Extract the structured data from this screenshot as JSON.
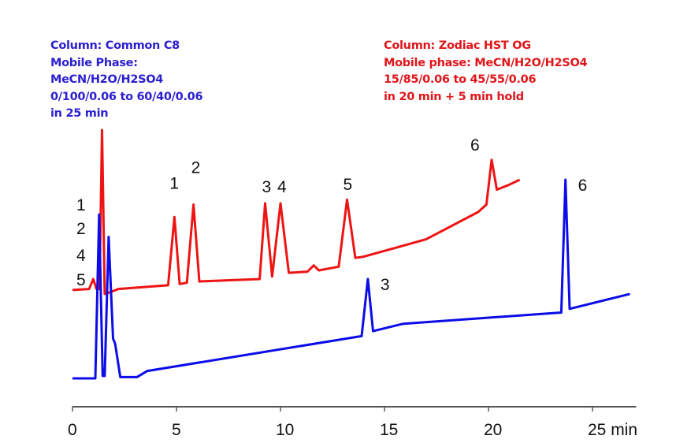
{
  "colors": {
    "blue_text": "#2b1fd0",
    "red_text": "#e0161b",
    "blue_trace": "#0c0ce8",
    "red_trace": "#ee1414"
  },
  "conditions": {
    "blue": [
      "Column: Common C8",
      "Mobile Phase:",
      "MeCN/H2O/H2SO4",
      "0/100/0.06 to 60/40/0.06",
      "in 25 min"
    ],
    "red": [
      "Column: Zodiac HST  OG",
      "Mobile phase: MeCN/H2O/H2SO4",
      "15/85/0.06 to 45/55/0.06",
      "in 20 min + 5 min hold"
    ]
  },
  "chart_data": {
    "type": "line",
    "title": "",
    "xlabel": "min",
    "ylabel": "",
    "xlim": [
      0,
      27.1
    ],
    "ylim": [
      0,
      100
    ],
    "x_ticks": [
      0,
      5,
      10,
      15,
      20,
      25
    ],
    "x_tick_labels": [
      "0",
      "5",
      "10",
      "15",
      "20",
      "25 min"
    ],
    "grid": false,
    "y_axis_shown": false,
    "series": [
      {
        "color": "#ee1414",
        "points": [
          [
            0,
            35.6
          ],
          [
            0.8,
            36
          ],
          [
            1.0,
            40
          ],
          [
            1.15,
            36
          ],
          [
            1.3,
            36
          ],
          [
            1.42,
            100
          ],
          [
            1.55,
            34
          ],
          [
            1.9,
            35
          ],
          [
            2.2,
            36
          ],
          [
            4.6,
            37.5
          ],
          [
            4.9,
            65
          ],
          [
            5.15,
            38
          ],
          [
            5.5,
            38.5
          ],
          [
            5.82,
            70
          ],
          [
            6.1,
            39
          ],
          [
            9.0,
            40
          ],
          [
            9.26,
            70.5
          ],
          [
            9.6,
            41
          ],
          [
            10.0,
            70.5
          ],
          [
            10.4,
            42.5
          ],
          [
            11.3,
            43
          ],
          [
            11.6,
            45.5
          ],
          [
            11.85,
            43.5
          ],
          [
            12.8,
            45
          ],
          [
            13.2,
            72
          ],
          [
            13.6,
            48.5
          ],
          [
            14.0,
            49
          ],
          [
            17.0,
            56
          ],
          [
            19.5,
            67
          ],
          [
            19.9,
            70
          ],
          [
            20.15,
            88
          ],
          [
            20.4,
            76
          ],
          [
            21.0,
            78
          ],
          [
            21.5,
            80
          ]
        ],
        "peak_labels": [
          {
            "label": "1",
            "t": 4.9
          },
          {
            "label": "2",
            "t": 5.82
          },
          {
            "label": "3",
            "t": 9.26
          },
          {
            "label": "4",
            "t": 10.0
          },
          {
            "label": "5",
            "t": 13.2
          },
          {
            "label": "6",
            "t": 20.15
          }
        ]
      },
      {
        "color": "#0c0ce8",
        "points": [
          [
            0,
            0
          ],
          [
            1.1,
            0
          ],
          [
            1.28,
            66
          ],
          [
            1.45,
            1
          ],
          [
            1.55,
            1
          ],
          [
            1.74,
            57
          ],
          [
            1.95,
            16
          ],
          [
            2.05,
            14
          ],
          [
            2.3,
            0.5
          ],
          [
            3.1,
            0.5
          ],
          [
            3.6,
            3
          ],
          [
            13.9,
            17
          ],
          [
            14.2,
            40
          ],
          [
            14.45,
            19
          ],
          [
            15.9,
            22
          ],
          [
            23.5,
            26.5
          ],
          [
            23.7,
            80
          ],
          [
            23.9,
            28
          ],
          [
            26.8,
            34
          ]
        ],
        "peak_labels": [
          {
            "label": "1",
            "t": 1.28
          },
          {
            "label": "2",
            "t": 1.28
          },
          {
            "label": "4",
            "t": 1.28
          },
          {
            "label": "5",
            "t": 1.28
          },
          {
            "label": "3",
            "t": 14.2
          },
          {
            "label": "6",
            "t": 23.7
          }
        ]
      }
    ]
  }
}
